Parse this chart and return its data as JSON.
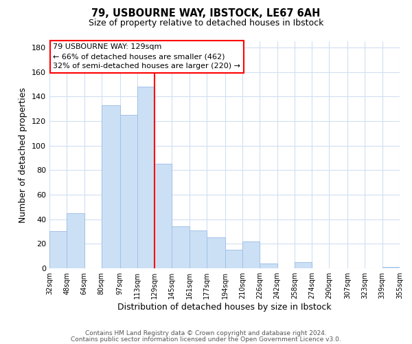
{
  "title": "79, USBOURNE WAY, IBSTOCK, LE67 6AH",
  "subtitle": "Size of property relative to detached houses in Ibstock",
  "xlabel": "Distribution of detached houses by size in Ibstock",
  "ylabel": "Number of detached properties",
  "bar_color": "#cce0f5",
  "bar_edgecolor": "#a0c0e8",
  "grid_color": "#d0dff0",
  "vline_x": 129,
  "vline_color": "red",
  "annotation_line1": "79 USBOURNE WAY: 129sqm",
  "annotation_line2": "← 66% of detached houses are smaller (462)",
  "annotation_line3": "32% of semi-detached houses are larger (220) →",
  "annotation_box_edgecolor": "red",
  "bins": [
    32,
    48,
    64,
    80,
    97,
    113,
    129,
    145,
    161,
    177,
    194,
    210,
    226,
    242,
    258,
    274,
    290,
    307,
    323,
    339,
    355
  ],
  "counts": [
    30,
    45,
    0,
    133,
    125,
    148,
    85,
    34,
    31,
    25,
    15,
    22,
    4,
    0,
    5,
    0,
    0,
    0,
    0,
    1
  ],
  "ylim": [
    0,
    185
  ],
  "yticks": [
    0,
    20,
    40,
    60,
    80,
    100,
    120,
    140,
    160,
    180
  ],
  "xtick_labels": [
    "32sqm",
    "48sqm",
    "64sqm",
    "80sqm",
    "97sqm",
    "113sqm",
    "129sqm",
    "145sqm",
    "161sqm",
    "177sqm",
    "194sqm",
    "210sqm",
    "226sqm",
    "242sqm",
    "258sqm",
    "274sqm",
    "290sqm",
    "307sqm",
    "323sqm",
    "339sqm",
    "355sqm"
  ],
  "footer1": "Contains HM Land Registry data © Crown copyright and database right 2024.",
  "footer2": "Contains public sector information licensed under the Open Government Licence v3.0."
}
